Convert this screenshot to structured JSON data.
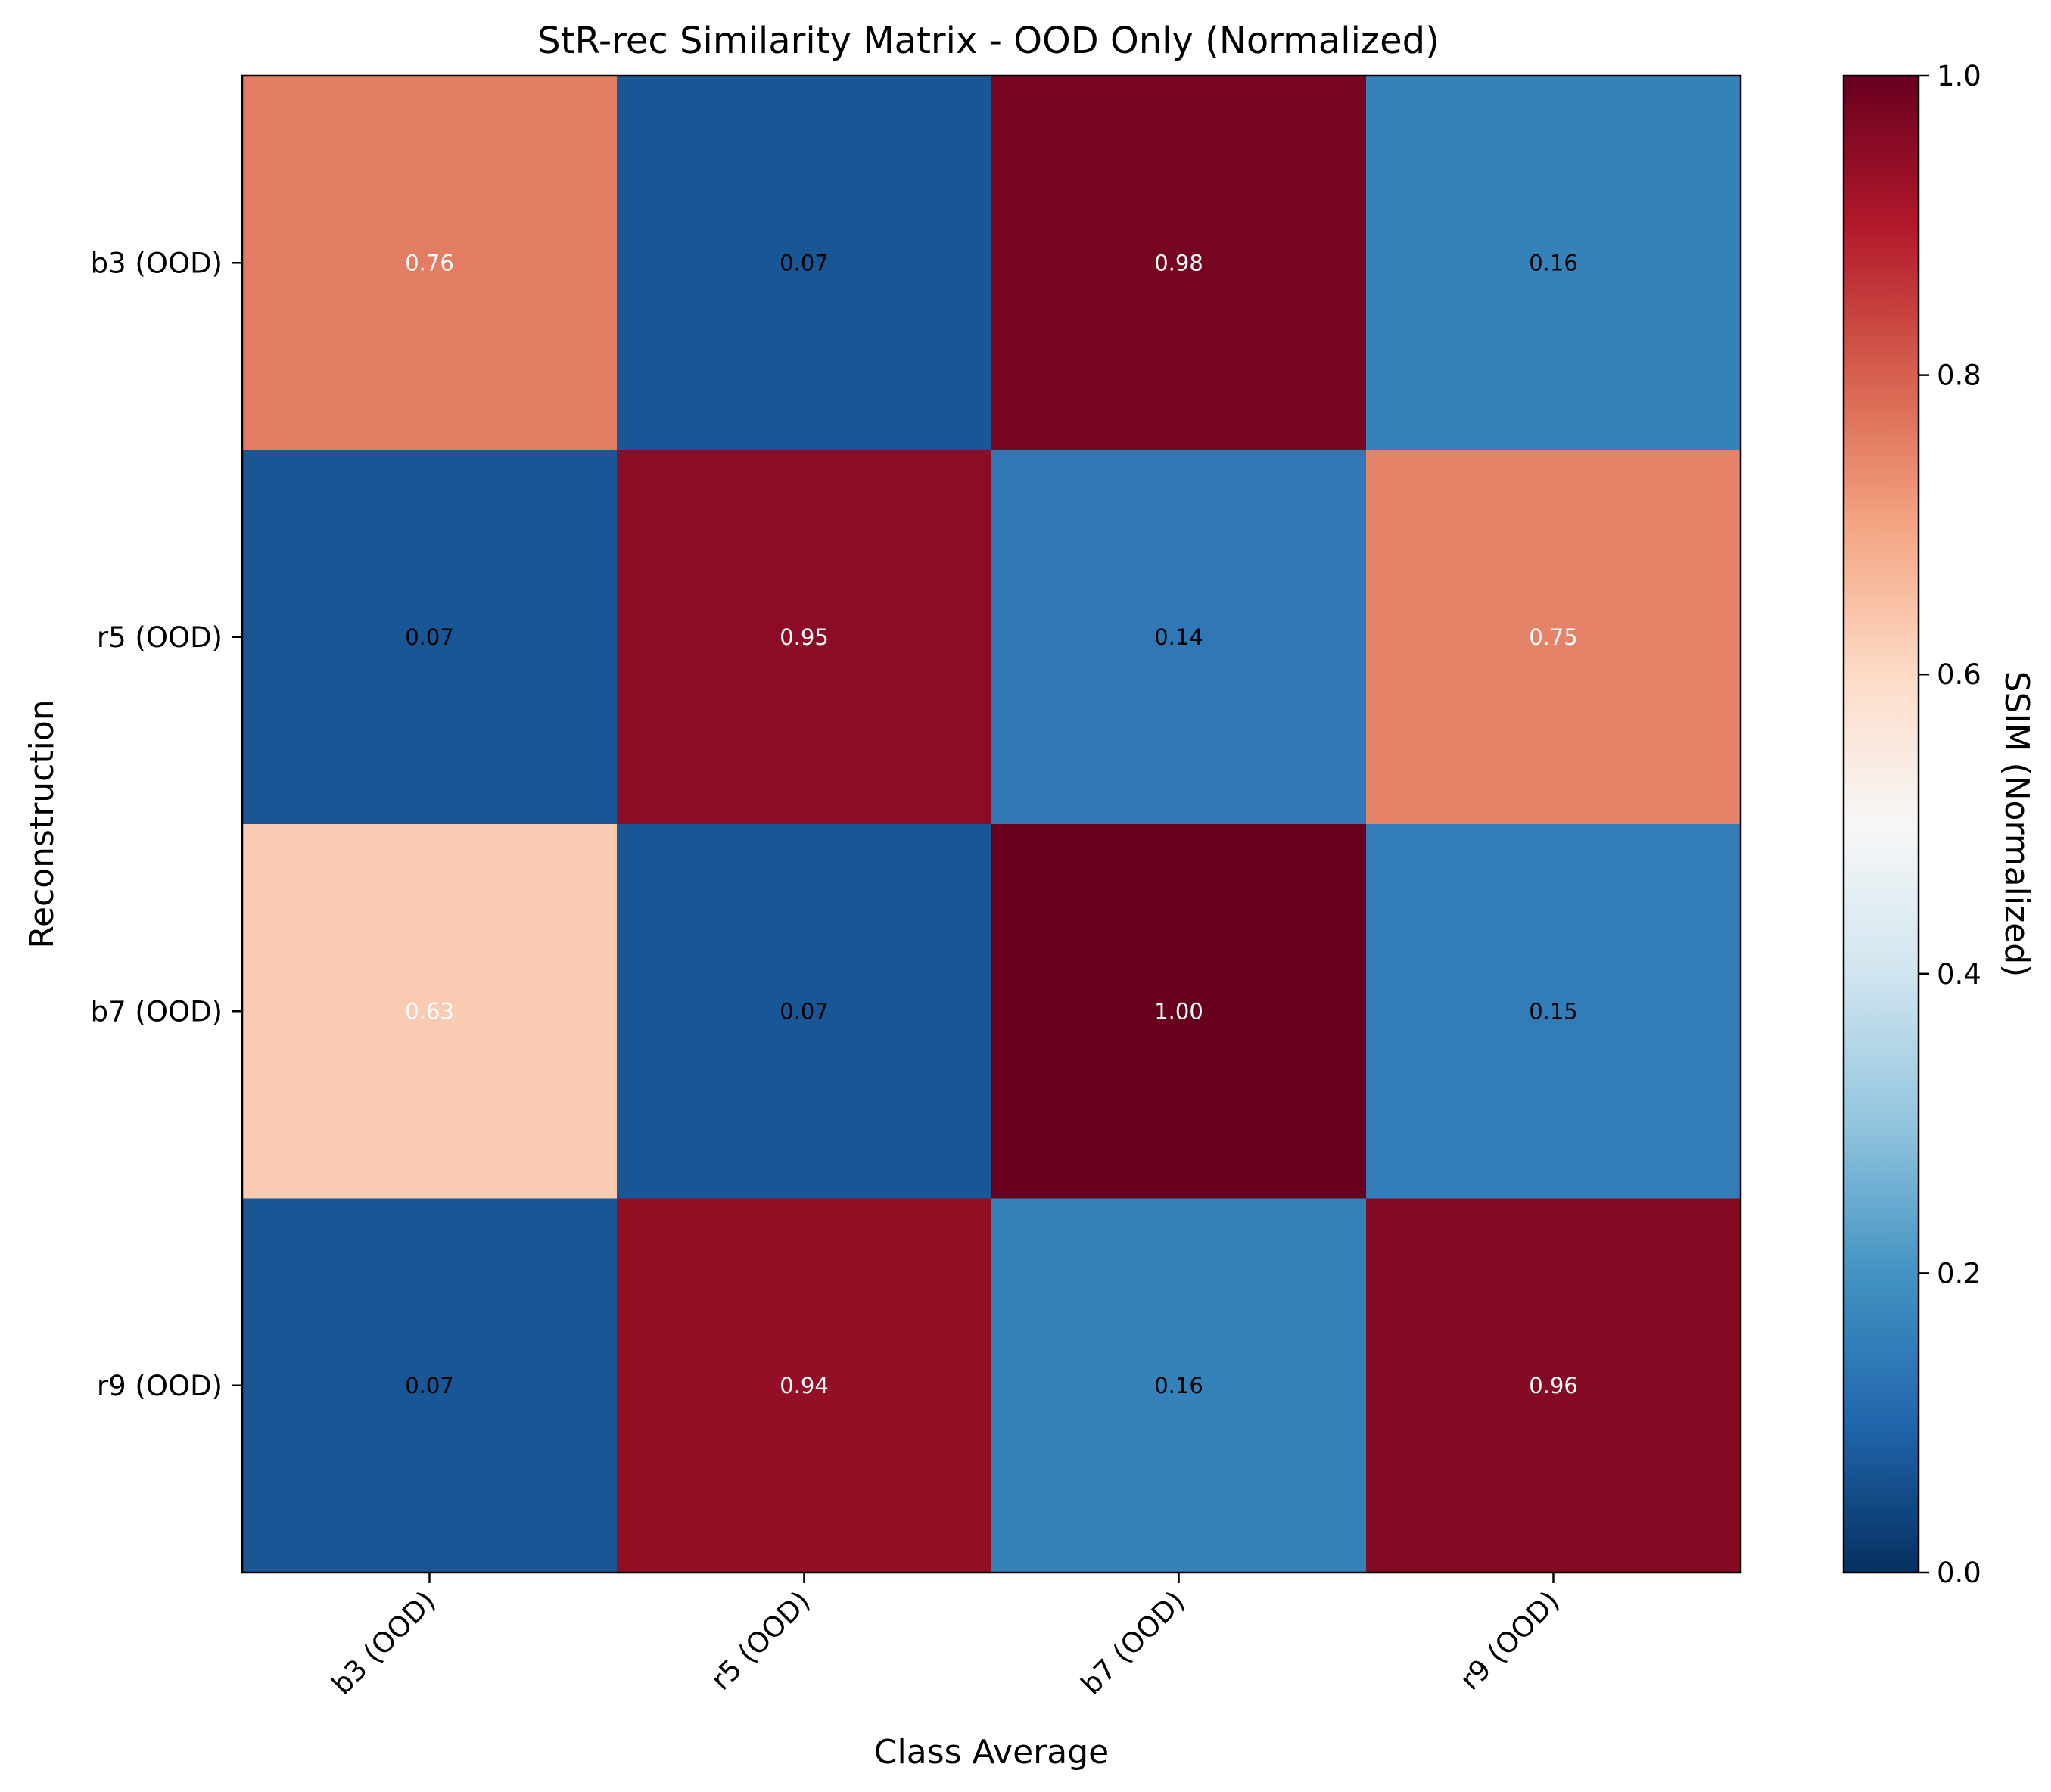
{
  "chart_data": {
    "type": "heatmap",
    "title": "StR-rec Similarity Matrix - OOD Only (Normalized)",
    "xlabel": "Class Average",
    "ylabel": "Reconstruction",
    "x_categories": [
      "b3 (OOD)",
      "r5 (OOD)",
      "b7 (OOD)",
      "r9 (OOD)"
    ],
    "y_categories": [
      "b3 (OOD)",
      "r5 (OOD)",
      "b7 (OOD)",
      "r9 (OOD)"
    ],
    "values": [
      [
        0.76,
        0.07,
        0.98,
        0.16
      ],
      [
        0.07,
        0.95,
        0.14,
        0.75
      ],
      [
        0.63,
        0.07,
        1.0,
        0.15
      ],
      [
        0.07,
        0.94,
        0.16,
        0.96
      ]
    ],
    "value_labels": [
      [
        "0.76",
        "0.07",
        "0.98",
        "0.16"
      ],
      [
        "0.07",
        "0.95",
        "0.14",
        "0.75"
      ],
      [
        "0.63",
        "0.07",
        "1.00",
        "0.15"
      ],
      [
        "0.07",
        "0.94",
        "0.16",
        "0.96"
      ]
    ],
    "colorbar": {
      "label": "SSIM (Normalized)",
      "range": [
        0.0,
        1.0
      ],
      "ticks": [
        "0.0",
        "0.2",
        "0.4",
        "0.6",
        "0.8",
        "1.0"
      ],
      "colormap": "RdBu_r"
    },
    "grid": false,
    "legend": "colorbar-right"
  }
}
